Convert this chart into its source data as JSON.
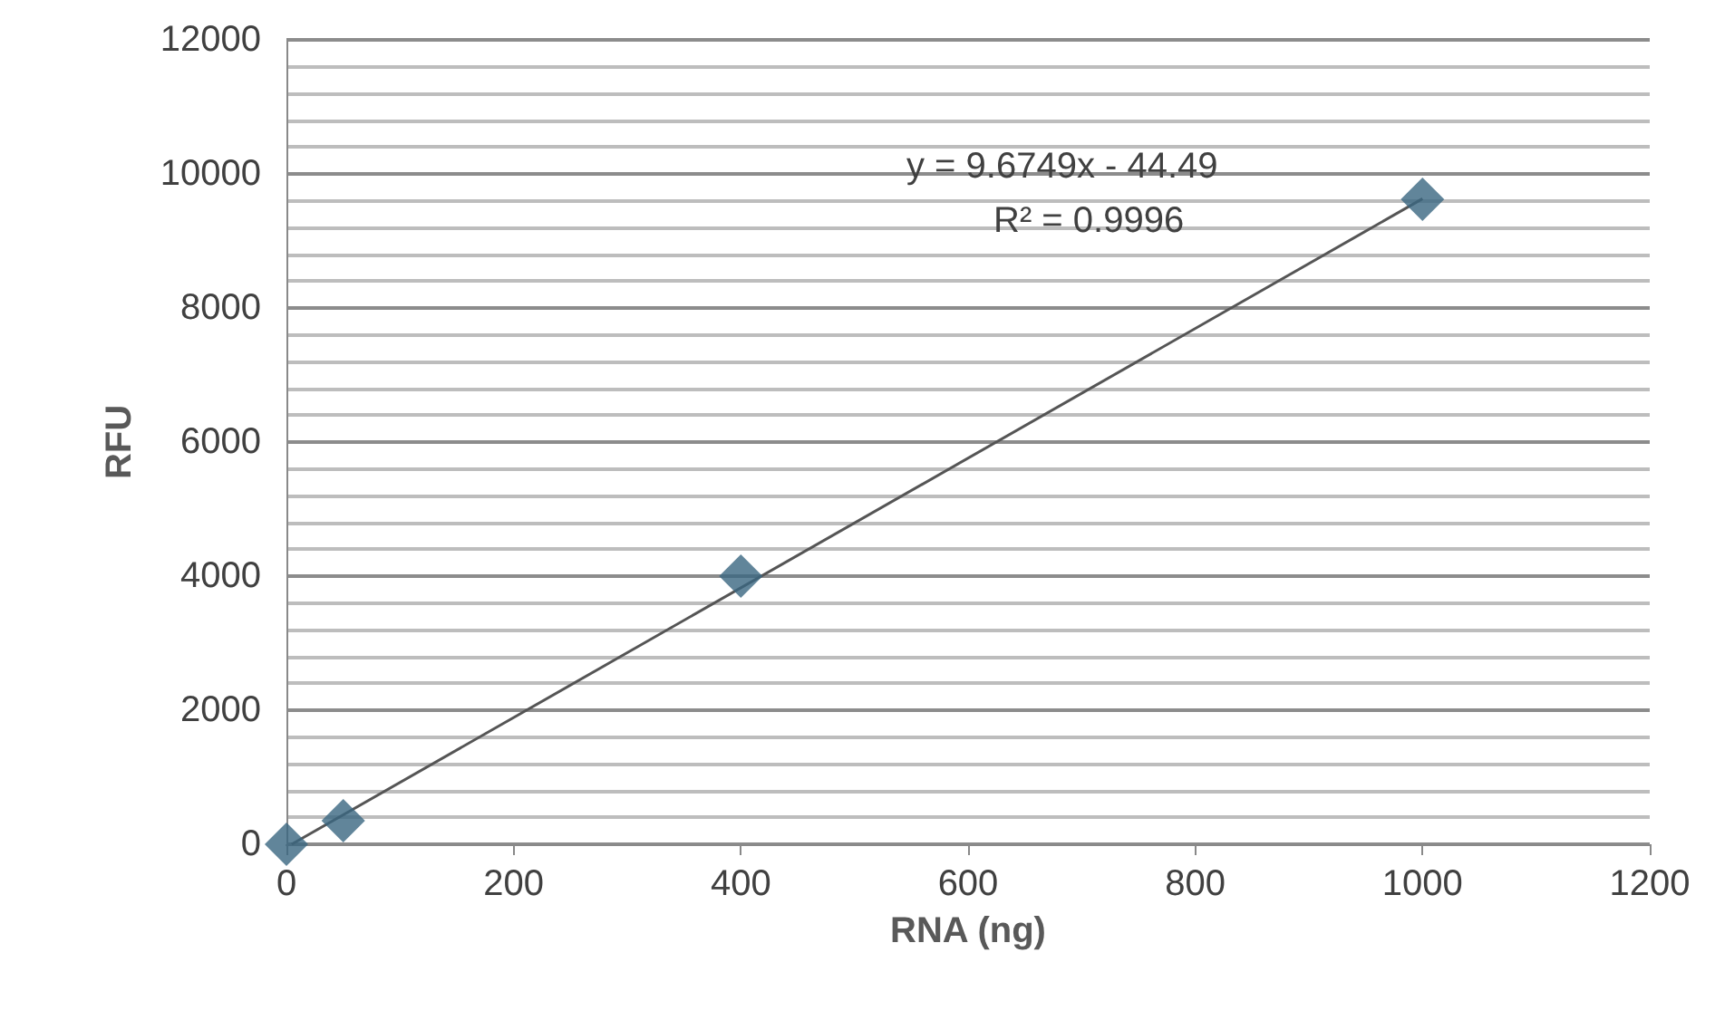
{
  "chart_data": {
    "type": "scatter",
    "xlabel": "RNA (ng)",
    "ylabel": "RFU",
    "series": [
      {
        "color": "#3a6681",
        "marker": "diamond",
        "x": [
          0,
          50,
          400,
          1000
        ],
        "values": [
          0,
          350,
          4000,
          9620
        ]
      },
      {
        "type": "line",
        "color": "#555555",
        "marker": "none",
        "x": [
          4.6,
          1000
        ],
        "values": [
          0,
          9630
        ]
      }
    ],
    "annotations": [
      "y = 9.6749x - 44.49",
      "R² = 0.9996"
    ],
    "xlim": [
      0,
      1200
    ],
    "xticks": [
      0,
      200,
      400,
      600,
      800,
      1000,
      1200
    ],
    "ylim": [
      0,
      12000
    ],
    "yticks": [
      0,
      2000,
      4000,
      6000,
      8000,
      10000,
      12000
    ],
    "grid": "y"
  }
}
